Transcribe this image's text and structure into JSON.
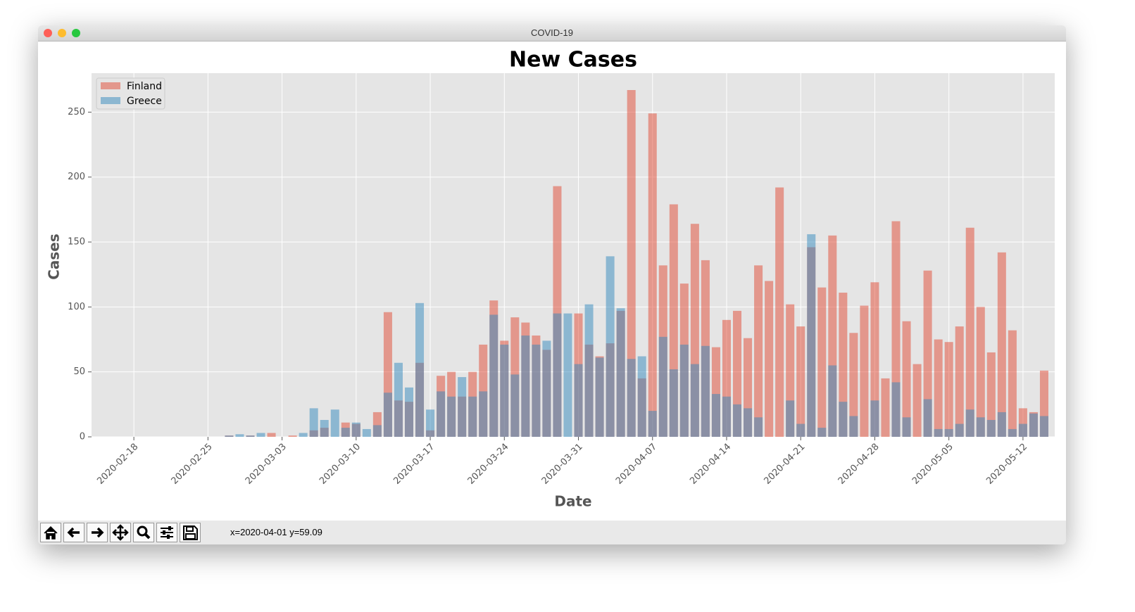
{
  "window": {
    "title": "COVID-19"
  },
  "chart_data": {
    "type": "bar",
    "title": "New Cases",
    "x_label": "Date",
    "y_label": "Cases",
    "x": [
      "2020-02-27",
      "2020-02-28",
      "2020-02-29",
      "2020-03-01",
      "2020-03-02",
      "2020-03-03",
      "2020-03-04",
      "2020-03-05",
      "2020-03-06",
      "2020-03-07",
      "2020-03-08",
      "2020-03-09",
      "2020-03-10",
      "2020-03-11",
      "2020-03-12",
      "2020-03-13",
      "2020-03-14",
      "2020-03-15",
      "2020-03-16",
      "2020-03-17",
      "2020-03-18",
      "2020-03-19",
      "2020-03-20",
      "2020-03-21",
      "2020-03-22",
      "2020-03-23",
      "2020-03-24",
      "2020-03-25",
      "2020-03-26",
      "2020-03-27",
      "2020-03-28",
      "2020-03-29",
      "2020-03-30",
      "2020-03-31",
      "2020-04-01",
      "2020-04-02",
      "2020-04-03",
      "2020-04-04",
      "2020-04-05",
      "2020-04-06",
      "2020-04-07",
      "2020-04-08",
      "2020-04-09",
      "2020-04-10",
      "2020-04-11",
      "2020-04-12",
      "2020-04-13",
      "2020-04-14",
      "2020-04-15",
      "2020-04-16",
      "2020-04-17",
      "2020-04-18",
      "2020-04-19",
      "2020-04-20",
      "2020-04-21",
      "2020-04-22",
      "2020-04-23",
      "2020-04-24",
      "2020-04-25",
      "2020-04-26",
      "2020-04-27",
      "2020-04-28",
      "2020-04-29",
      "2020-04-30",
      "2020-05-01",
      "2020-05-02",
      "2020-05-03",
      "2020-05-04",
      "2020-05-05",
      "2020-05-06",
      "2020-05-07",
      "2020-05-08",
      "2020-05-09",
      "2020-05-10",
      "2020-05-11",
      "2020-05-12",
      "2020-05-13",
      "2020-05-14"
    ],
    "series": [
      {
        "name": "Finland",
        "color": "#E24A33",
        "values": [
          1,
          0,
          1,
          0,
          3,
          0,
          1,
          0,
          5,
          7,
          0,
          11,
          10,
          0,
          19,
          96,
          28,
          27,
          57,
          5,
          47,
          50,
          31,
          50,
          71,
          105,
          74,
          92,
          88,
          78,
          67,
          193,
          0,
          95,
          71,
          62,
          72,
          97,
          267,
          45,
          249,
          132,
          179,
          118,
          164,
          136,
          69,
          90,
          97,
          76,
          132,
          120,
          192,
          102,
          85,
          146,
          115,
          155,
          111,
          80,
          101,
          119,
          45,
          166,
          89,
          56,
          128,
          75,
          73,
          85,
          161,
          100,
          65,
          142,
          82,
          22,
          19,
          51
        ]
      },
      {
        "name": "Greece",
        "color": "#348ABD",
        "values": [
          1,
          2,
          1,
          3,
          0,
          0,
          0,
          3,
          22,
          13,
          21,
          7,
          11,
          6,
          9,
          34,
          57,
          38,
          103,
          21,
          35,
          31,
          46,
          31,
          35,
          94,
          71,
          48,
          78,
          71,
          74,
          95,
          95,
          56,
          102,
          61,
          139,
          99,
          60,
          62,
          20,
          77,
          52,
          71,
          56,
          70,
          33,
          31,
          25,
          22,
          15,
          0,
          0,
          28,
          10,
          156,
          7,
          55,
          27,
          16,
          0,
          28,
          0,
          42,
          15,
          0,
          29,
          6,
          6,
          10,
          21,
          15,
          13,
          19,
          6,
          10,
          18,
          16
        ]
      }
    ],
    "xlim": [
      "2020-02-14",
      "2020-05-15"
    ],
    "xticks": [
      "2020-02-18",
      "2020-02-25",
      "2020-03-03",
      "2020-03-10",
      "2020-03-17",
      "2020-03-24",
      "2020-03-31",
      "2020-04-07",
      "2020-04-14",
      "2020-04-21",
      "2020-04-28",
      "2020-05-05",
      "2020-05-12"
    ],
    "ylim": [
      0,
      280
    ],
    "yticks": [
      0,
      50,
      100,
      150,
      200,
      250
    ],
    "grid": true,
    "legend": "upper-left",
    "alpha": 0.5,
    "background": "#E5E5E5"
  },
  "toolbar": {
    "status": "x=2020-04-01 y=59.09"
  }
}
